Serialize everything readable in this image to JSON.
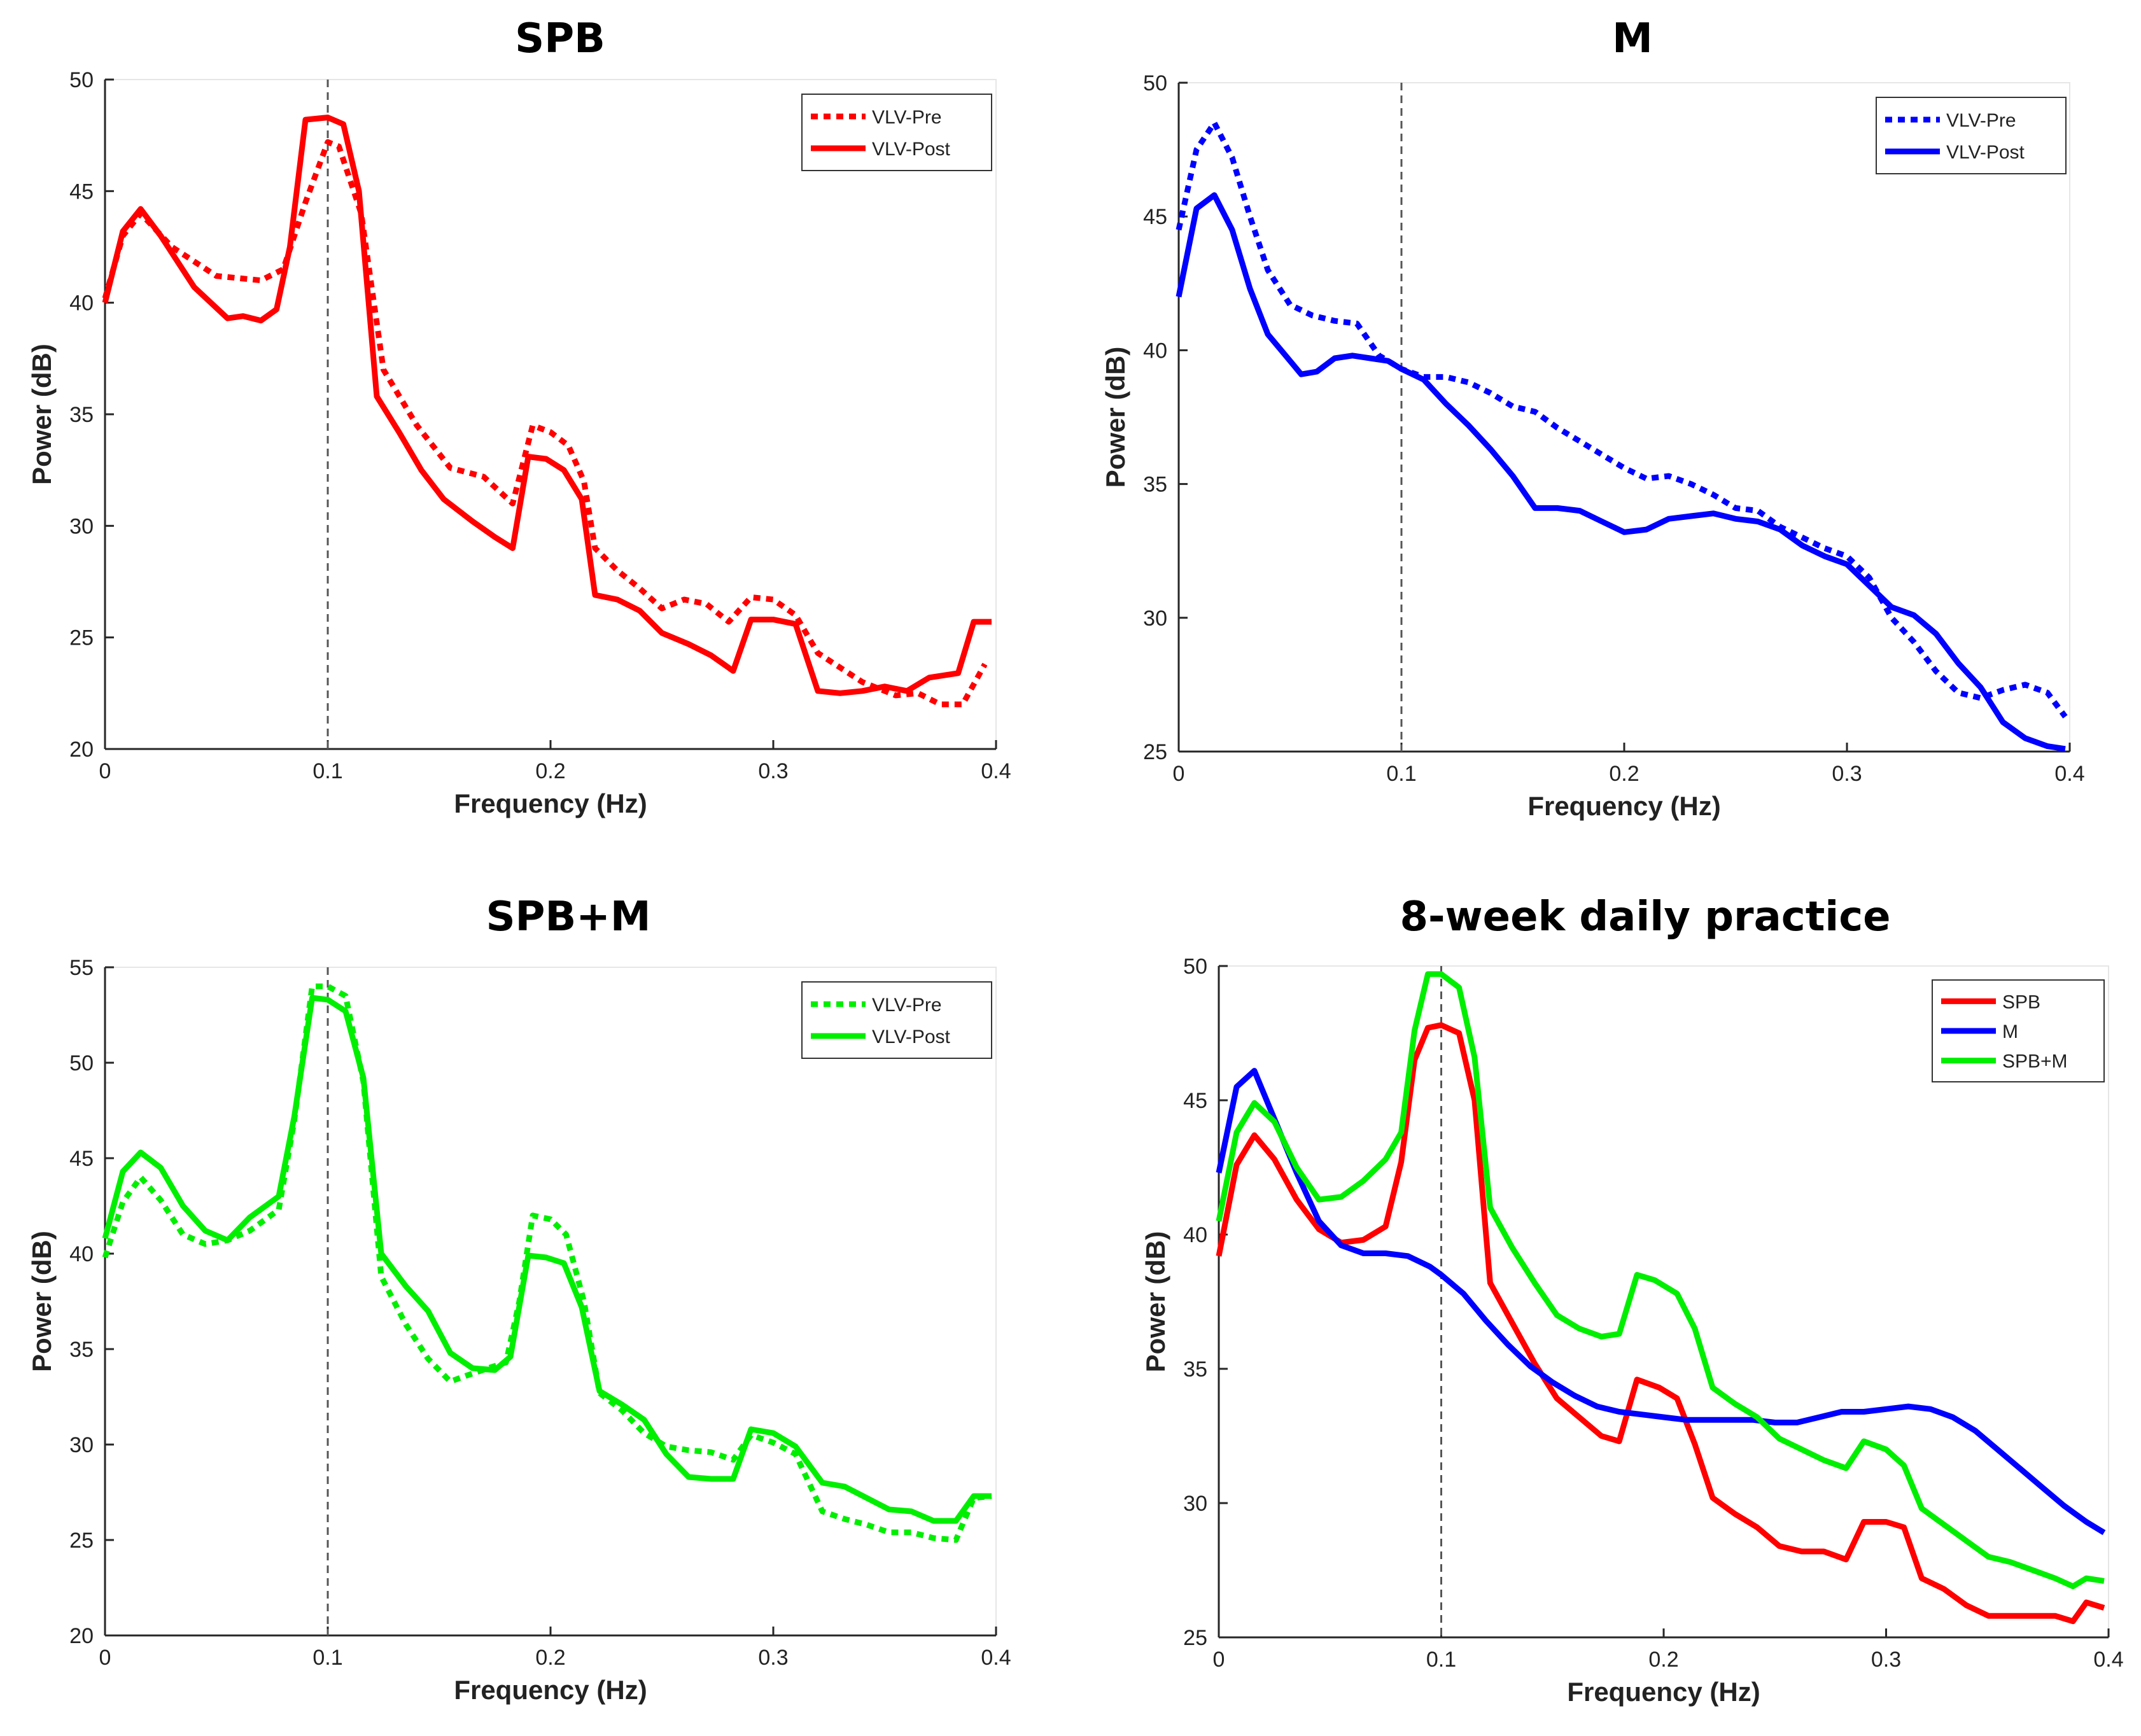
{
  "chart_data": [
    {
      "type": "line",
      "title": "SPB",
      "xlabel": "Frequency (Hz)",
      "ylabel": "Power (dB)",
      "xlim": [
        0,
        0.4
      ],
      "ylim": [
        20,
        50
      ],
      "xticks": [
        0,
        0.1,
        0.2,
        0.3,
        0.4
      ],
      "xtick_labels": [
        "0",
        "0.1",
        "0.2",
        "0.3",
        "0.4"
      ],
      "yticks": [
        20,
        25,
        30,
        35,
        40,
        45,
        50
      ],
      "ytick_labels": [
        "20",
        "25",
        "30",
        "35",
        "40",
        "45",
        "50"
      ],
      "reference_line_x": 0.1,
      "legend_position": "top-right",
      "series": [
        {
          "name": "VLV-Pre",
          "color": "#ff0000",
          "style": "dotted",
          "x": [
            0,
            0.008,
            0.016,
            0.03,
            0.05,
            0.07,
            0.08,
            0.09,
            0.1,
            0.105,
            0.115,
            0.125,
            0.14,
            0.155,
            0.17,
            0.183,
            0.192,
            0.2,
            0.208,
            0.215,
            0.22,
            0.23,
            0.24,
            0.25,
            0.26,
            0.27,
            0.28,
            0.29,
            0.3,
            0.31,
            0.32,
            0.34,
            0.355,
            0.365,
            0.375,
            0.385,
            0.395
          ],
          "y": [
            40.2,
            43,
            44,
            42.5,
            41.2,
            41,
            41.5,
            44.5,
            47.2,
            47,
            44,
            37,
            34.5,
            32.6,
            32.2,
            31,
            34.5,
            34.2,
            33.6,
            32,
            29,
            28,
            27.2,
            26.3,
            26.7,
            26.5,
            25.7,
            26.8,
            26.7,
            26,
            24.3,
            23,
            22.4,
            22.5,
            22,
            22,
            23.8
          ]
        },
        {
          "name": "VLV-Post",
          "color": "#ff0000",
          "style": "solid",
          "x": [
            0,
            0.008,
            0.016,
            0.025,
            0.04,
            0.055,
            0.062,
            0.07,
            0.077,
            0.083,
            0.09,
            0.1,
            0.107,
            0.114,
            0.122,
            0.132,
            0.142,
            0.152,
            0.165,
            0.175,
            0.183,
            0.19,
            0.198,
            0.206,
            0.214,
            0.22,
            0.23,
            0.24,
            0.25,
            0.262,
            0.272,
            0.282,
            0.29,
            0.3,
            0.31,
            0.32,
            0.33,
            0.34,
            0.35,
            0.36,
            0.37,
            0.383,
            0.39,
            0.398
          ],
          "y": [
            40,
            43.2,
            44.2,
            43,
            40.7,
            39.3,
            39.4,
            39.2,
            39.7,
            42.5,
            48.2,
            48.3,
            48,
            45,
            35.8,
            34.2,
            32.5,
            31.2,
            30.2,
            29.5,
            29,
            33.1,
            33,
            32.5,
            31.2,
            26.9,
            26.7,
            26.2,
            25.2,
            24.7,
            24.2,
            23.5,
            25.8,
            25.8,
            25.6,
            22.6,
            22.5,
            22.6,
            22.8,
            22.6,
            23.2,
            23.4,
            25.7,
            25.7
          ]
        }
      ]
    },
    {
      "type": "line",
      "title": "M",
      "xlabel": "Frequency (Hz)",
      "ylabel": "Power (dB)",
      "xlim": [
        0,
        0.4
      ],
      "ylim": [
        25,
        50
      ],
      "xticks": [
        0,
        0.1,
        0.2,
        0.3,
        0.4
      ],
      "xtick_labels": [
        "0",
        "0.1",
        "0.2",
        "0.3",
        "0.4"
      ],
      "yticks": [
        25,
        30,
        35,
        40,
        45,
        50
      ],
      "ytick_labels": [
        "25",
        "30",
        "35",
        "40",
        "45",
        "50"
      ],
      "reference_line_x": 0.1,
      "legend_position": "top-right",
      "series": [
        {
          "name": "VLV-Pre",
          "color": "#0000ff",
          "style": "dotted",
          "x": [
            0,
            0.008,
            0.016,
            0.024,
            0.032,
            0.04,
            0.05,
            0.06,
            0.07,
            0.08,
            0.09,
            0.1,
            0.11,
            0.12,
            0.13,
            0.14,
            0.15,
            0.16,
            0.17,
            0.18,
            0.19,
            0.2,
            0.21,
            0.22,
            0.23,
            0.24,
            0.25,
            0.26,
            0.27,
            0.28,
            0.29,
            0.3,
            0.31,
            0.32,
            0.33,
            0.34,
            0.35,
            0.36,
            0.37,
            0.38,
            0.39,
            0.398
          ],
          "y": [
            44.5,
            47.5,
            48.5,
            47.2,
            45,
            43,
            41.7,
            41.3,
            41.1,
            41,
            39.8,
            39.3,
            39,
            39,
            38.8,
            38.4,
            37.9,
            37.7,
            37.1,
            36.6,
            36.1,
            35.6,
            35.2,
            35.3,
            35,
            34.6,
            34.1,
            34,
            33.4,
            33,
            32.6,
            32.3,
            31.5,
            30,
            29.1,
            28,
            27.2,
            27,
            27.3,
            27.5,
            27.2,
            26.3
          ]
        },
        {
          "name": "VLV-Post",
          "color": "#0000ff",
          "style": "solid",
          "x": [
            0,
            0.008,
            0.016,
            0.024,
            0.032,
            0.04,
            0.048,
            0.055,
            0.062,
            0.07,
            0.078,
            0.086,
            0.094,
            0.1,
            0.11,
            0.12,
            0.13,
            0.14,
            0.15,
            0.16,
            0.17,
            0.18,
            0.19,
            0.2,
            0.21,
            0.22,
            0.23,
            0.24,
            0.25,
            0.26,
            0.27,
            0.28,
            0.29,
            0.3,
            0.31,
            0.32,
            0.33,
            0.34,
            0.35,
            0.36,
            0.37,
            0.38,
            0.39,
            0.398
          ],
          "y": [
            42,
            45.3,
            45.8,
            44.5,
            42.3,
            40.6,
            39.8,
            39.1,
            39.2,
            39.7,
            39.8,
            39.7,
            39.6,
            39.3,
            38.9,
            38,
            37.2,
            36.3,
            35.3,
            34.1,
            34.1,
            34,
            33.6,
            33.2,
            33.3,
            33.7,
            33.8,
            33.9,
            33.7,
            33.6,
            33.3,
            32.7,
            32.3,
            32,
            31.2,
            30.4,
            30.1,
            29.4,
            28.3,
            27.4,
            26.1,
            25.5,
            25.2,
            25.1
          ]
        }
      ]
    },
    {
      "type": "line",
      "title": "SPB+M",
      "xlabel": "Frequency (Hz)",
      "ylabel": "Power (dB)",
      "xlim": [
        0,
        0.4
      ],
      "ylim": [
        20,
        55
      ],
      "xticks": [
        0,
        0.1,
        0.2,
        0.3,
        0.4
      ],
      "xtick_labels": [
        "0",
        "0.1",
        "0.2",
        "0.3",
        "0.4"
      ],
      "yticks": [
        20,
        25,
        30,
        35,
        40,
        45,
        50,
        55
      ],
      "ytick_labels": [
        "20",
        "25",
        "30",
        "35",
        "40",
        "45",
        "50",
        "55"
      ],
      "reference_line_x": 0.1,
      "legend_position": "top-right",
      "series": [
        {
          "name": "VLV-Pre",
          "color": "#00ee00",
          "style": "dotted",
          "x": [
            0,
            0.008,
            0.016,
            0.025,
            0.035,
            0.045,
            0.055,
            0.065,
            0.078,
            0.085,
            0.093,
            0.1,
            0.108,
            0.116,
            0.124,
            0.135,
            0.145,
            0.155,
            0.162,
            0.172,
            0.18,
            0.186,
            0.192,
            0.2,
            0.207,
            0.215,
            0.222,
            0.232,
            0.242,
            0.252,
            0.262,
            0.272,
            0.282,
            0.29,
            0.3,
            0.31,
            0.322,
            0.332,
            0.342,
            0.352,
            0.362,
            0.372,
            0.382,
            0.39,
            0.398
          ],
          "y": [
            39.8,
            42.7,
            44,
            42.8,
            41,
            40.5,
            40.7,
            41.2,
            42.3,
            47,
            54,
            54,
            53.5,
            49,
            38.8,
            36.3,
            34.5,
            33.3,
            33.6,
            34,
            34.3,
            37.5,
            42,
            41.8,
            41,
            37.5,
            32.7,
            31.8,
            30.6,
            29.9,
            29.7,
            29.6,
            29.2,
            30.5,
            30.1,
            29.5,
            26.5,
            26.1,
            25.8,
            25.4,
            25.4,
            25.1,
            25,
            27.2,
            27.3
          ]
        },
        {
          "name": "VLV-Post",
          "color": "#00ee00",
          "style": "solid",
          "x": [
            0,
            0.008,
            0.016,
            0.025,
            0.035,
            0.045,
            0.055,
            0.065,
            0.078,
            0.085,
            0.093,
            0.1,
            0.108,
            0.116,
            0.124,
            0.135,
            0.145,
            0.155,
            0.165,
            0.175,
            0.182,
            0.19,
            0.198,
            0.206,
            0.214,
            0.222,
            0.232,
            0.242,
            0.252,
            0.262,
            0.272,
            0.282,
            0.29,
            0.3,
            0.31,
            0.322,
            0.332,
            0.342,
            0.352,
            0.362,
            0.372,
            0.382,
            0.39,
            0.398
          ],
          "y": [
            40.8,
            44.3,
            45.3,
            44.5,
            42.5,
            41.2,
            40.7,
            41.9,
            43,
            47.2,
            53.4,
            53.3,
            52.7,
            49.2,
            40,
            38.3,
            37,
            34.8,
            34,
            33.9,
            34.6,
            39.9,
            39.8,
            39.5,
            37.2,
            32.8,
            32.1,
            31.3,
            29.5,
            28.3,
            28.2,
            28.2,
            30.8,
            30.6,
            29.9,
            28,
            27.8,
            27.2,
            26.6,
            26.5,
            26,
            26,
            27.3,
            27.3
          ]
        }
      ]
    },
    {
      "type": "line",
      "title": "8-week daily practice",
      "xlabel": "Frequency (Hz)",
      "ylabel": "Power (dB)",
      "xlim": [
        0,
        0.4
      ],
      "ylim": [
        25,
        50
      ],
      "xticks": [
        0,
        0.1,
        0.2,
        0.3,
        0.4
      ],
      "xtick_labels": [
        "0",
        "0.1",
        "0.2",
        "0.3",
        "0.4"
      ],
      "yticks": [
        25,
        30,
        35,
        40,
        45,
        50
      ],
      "ytick_labels": [
        "25",
        "30",
        "35",
        "40",
        "45",
        "50"
      ],
      "reference_line_x": 0.1,
      "legend_position": "top-right",
      "series": [
        {
          "name": "SPB",
          "color": "#ff0000",
          "style": "solid",
          "x": [
            0,
            0.008,
            0.016,
            0.025,
            0.035,
            0.045,
            0.055,
            0.065,
            0.075,
            0.082,
            0.088,
            0.094,
            0.1,
            0.108,
            0.115,
            0.122,
            0.132,
            0.142,
            0.152,
            0.162,
            0.172,
            0.18,
            0.188,
            0.198,
            0.206,
            0.214,
            0.222,
            0.232,
            0.242,
            0.252,
            0.262,
            0.272,
            0.282,
            0.29,
            0.3,
            0.308,
            0.316,
            0.326,
            0.336,
            0.346,
            0.356,
            0.366,
            0.376,
            0.384,
            0.39,
            0.398
          ],
          "y": [
            39.2,
            42.6,
            43.7,
            42.8,
            41.3,
            40.2,
            39.7,
            39.8,
            40.3,
            42.7,
            46.5,
            47.7,
            47.8,
            47.5,
            45,
            38.2,
            36.7,
            35.2,
            33.9,
            33.2,
            32.5,
            32.3,
            34.6,
            34.3,
            33.9,
            32.2,
            30.2,
            29.6,
            29.1,
            28.4,
            28.2,
            28.2,
            27.9,
            29.3,
            29.3,
            29.1,
            27.2,
            26.8,
            26.2,
            25.8,
            25.8,
            25.8,
            25.8,
            25.6,
            26.3,
            26.1
          ]
        },
        {
          "name": "M",
          "color": "#0000ff",
          "style": "solid",
          "x": [
            0,
            0.008,
            0.016,
            0.025,
            0.035,
            0.045,
            0.055,
            0.065,
            0.075,
            0.085,
            0.095,
            0.1,
            0.11,
            0.12,
            0.13,
            0.14,
            0.15,
            0.16,
            0.17,
            0.18,
            0.19,
            0.2,
            0.21,
            0.22,
            0.23,
            0.24,
            0.25,
            0.26,
            0.27,
            0.28,
            0.29,
            0.3,
            0.31,
            0.32,
            0.33,
            0.34,
            0.35,
            0.36,
            0.37,
            0.38,
            0.39,
            0.398
          ],
          "y": [
            42.3,
            45.5,
            46.1,
            44.3,
            42.3,
            40.5,
            39.6,
            39.3,
            39.3,
            39.2,
            38.8,
            38.5,
            37.8,
            36.8,
            35.9,
            35.1,
            34.5,
            34,
            33.6,
            33.4,
            33.3,
            33.2,
            33.1,
            33.1,
            33.1,
            33.1,
            33,
            33,
            33.2,
            33.4,
            33.4,
            33.5,
            33.6,
            33.5,
            33.2,
            32.7,
            32,
            31.3,
            30.6,
            29.9,
            29.3,
            28.9
          ]
        },
        {
          "name": "SPB+M",
          "color": "#00ee00",
          "style": "solid",
          "x": [
            0,
            0.008,
            0.016,
            0.025,
            0.035,
            0.045,
            0.055,
            0.065,
            0.075,
            0.082,
            0.088,
            0.094,
            0.1,
            0.108,
            0.115,
            0.122,
            0.132,
            0.142,
            0.152,
            0.162,
            0.172,
            0.18,
            0.188,
            0.196,
            0.206,
            0.214,
            0.222,
            0.232,
            0.242,
            0.252,
            0.262,
            0.272,
            0.282,
            0.29,
            0.3,
            0.308,
            0.316,
            0.326,
            0.336,
            0.346,
            0.356,
            0.366,
            0.376,
            0.384,
            0.39,
            0.398
          ],
          "y": [
            40.5,
            43.8,
            44.9,
            44.2,
            42.5,
            41.3,
            41.4,
            42,
            42.8,
            43.8,
            47.6,
            49.7,
            49.7,
            49.2,
            46.6,
            41,
            39.5,
            38.2,
            37,
            36.5,
            36.2,
            36.3,
            38.5,
            38.3,
            37.8,
            36.5,
            34.3,
            33.7,
            33.2,
            32.4,
            32,
            31.6,
            31.3,
            32.3,
            32,
            31.4,
            29.8,
            29.2,
            28.6,
            28,
            27.8,
            27.5,
            27.2,
            26.9,
            27.2,
            27.1
          ]
        }
      ]
    }
  ]
}
